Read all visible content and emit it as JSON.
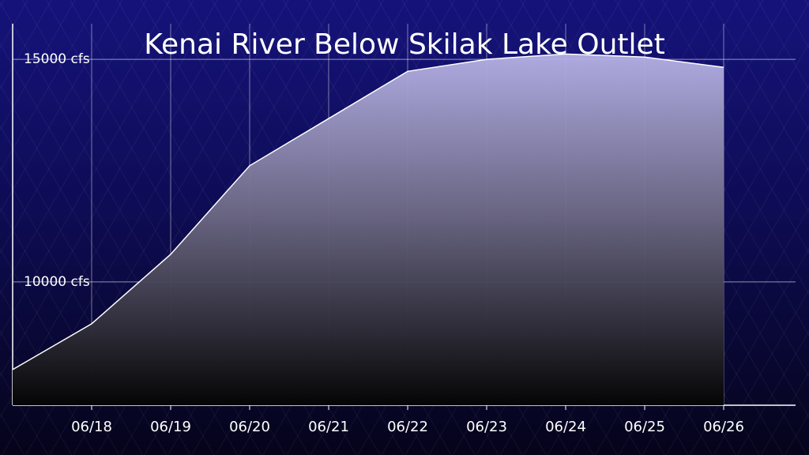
{
  "chart_data": {
    "type": "area",
    "title": "Kenai River Below Skilak Lake Outlet",
    "categories": [
      null,
      "06/18",
      "06/19",
      "06/20",
      "06/21",
      "06/22",
      "06/23",
      "06/24",
      "06/25",
      "06/26"
    ],
    "values": [
      8030,
      9060,
      10620,
      12610,
      13670,
      14730,
      15000,
      15120,
      15050,
      14820
    ],
    "color": "#ffffff",
    "ylim": [
      7230,
      15800
    ],
    "yticks": [
      {
        "value": 10000,
        "label": "10000 cfs"
      },
      {
        "value": 15000,
        "label": "15000 cfs"
      }
    ],
    "grid": true
  }
}
